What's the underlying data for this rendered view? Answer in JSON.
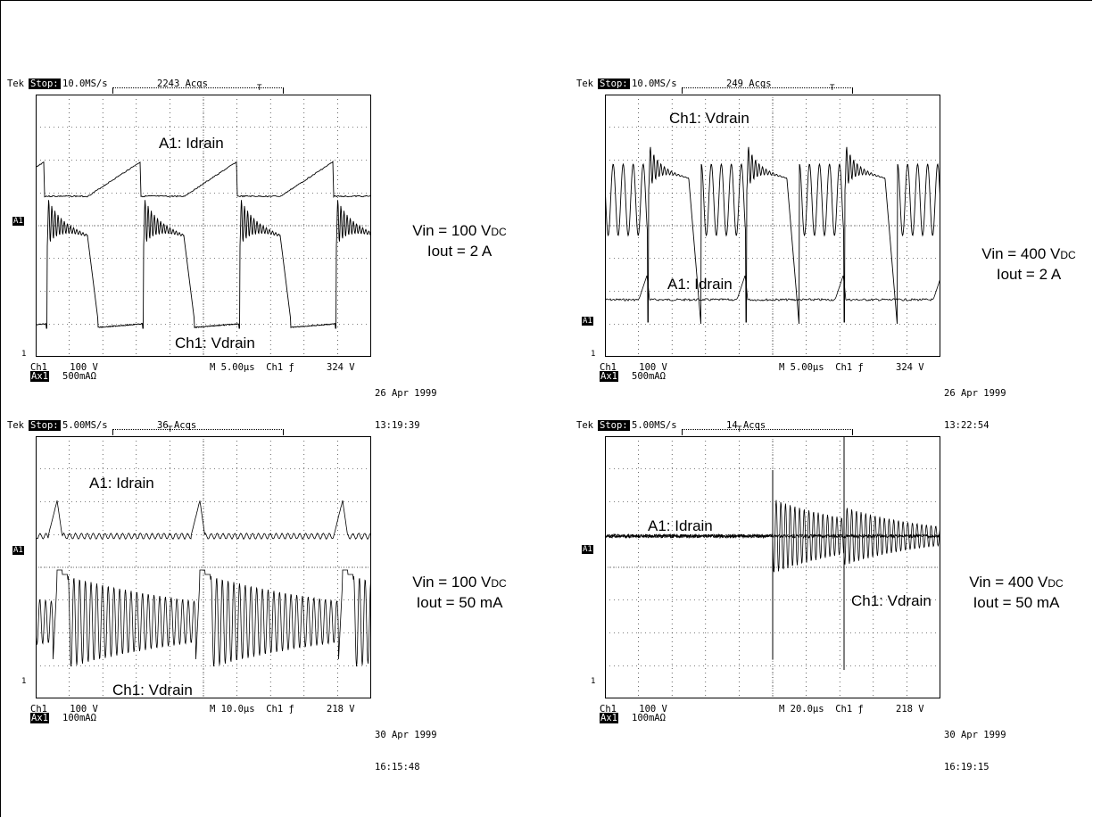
{
  "panels": [
    {
      "brand": "Tek",
      "status": "Stop:",
      "sample_rate": "10.0MS/s",
      "acqs": "2243 Acqs",
      "a1_label": "A1: Idrain",
      "ch1_label": "Ch1: Vdrain",
      "ch1_scale": "Ch1    100 V",
      "ax1_name": "Ax1",
      "ax1_scale": "500mAΩ",
      "timebase": "M 5.00µs  Ch1 ƒ",
      "trigger_level": "324 V",
      "date": "26 Apr 1999",
      "time": "13:19:39",
      "condition_vin": "Vin = 100 V",
      "vin_unit": "DC",
      "condition_iout": "Iout = 2 A"
    },
    {
      "brand": "Tek",
      "status": "Stop:",
      "sample_rate": "10.0MS/s",
      "acqs": "249 Acqs",
      "a1_label": "A1: Idrain",
      "ch1_label": "Ch1: Vdrain",
      "ch1_scale": "Ch1    100 V",
      "ax1_name": "Ax1",
      "ax1_scale": "500mAΩ",
      "timebase": "M 5.00µs  Ch1 ƒ",
      "trigger_level": "324 V",
      "date": "26 Apr 1999",
      "time": "13:22:54",
      "condition_vin": "Vin = 400 V",
      "vin_unit": "DC",
      "condition_iout": "Iout = 2 A"
    },
    {
      "brand": "Tek",
      "status": "Stop:",
      "sample_rate": "5.00MS/s",
      "acqs": "36 Acqs",
      "a1_label": "A1: Idrain",
      "ch1_label": "Ch1: Vdrain",
      "ch1_scale": "Ch1    100 V",
      "ax1_name": "Ax1",
      "ax1_scale": "100mAΩ",
      "timebase": "M 10.0µs  Ch1 ƒ",
      "trigger_level": "218 V",
      "date": "30 Apr 1999",
      "time": "16:15:48",
      "condition_vin": "Vin = 100 V",
      "vin_unit": "DC",
      "condition_iout": "Iout = 50 mA"
    },
    {
      "brand": "Tek",
      "status": "Stop:",
      "sample_rate": "5.00MS/s",
      "acqs": "14 Acqs",
      "a1_label": "A1: Idrain",
      "ch1_label": "Ch1: Vdrain",
      "ch1_scale": "Ch1    100 V",
      "ax1_name": "Ax1",
      "ax1_scale": "100mAΩ",
      "timebase": "M 20.0µs  Ch1 ƒ",
      "trigger_level": "218 V",
      "date": "30 Apr 1999",
      "time": "16:19:15",
      "condition_vin": "Vin = 400 V",
      "vin_unit": "DC",
      "condition_iout": "Iout = 50 mA"
    }
  ],
  "chart_data": [
    {
      "type": "line",
      "ch1_marker": "1",
      "a1_marker": "A1",
      "trigger_marker": "T",
      "grid": true,
      "x_divisions": 10,
      "y_divisions": 8,
      "x_per_div_us": 5.0,
      "v_per_div": 100,
      "a_per_div": 0.5,
      "series": [
        {
          "name": "A1: Idrain",
          "waveform": "ramp"
        },
        {
          "name": "Ch1: Vdrain",
          "waveform": "square with ringing"
        }
      ]
    },
    {
      "type": "line",
      "ch1_marker": "1",
      "a1_marker": "A1",
      "trigger_marker": "T",
      "grid": true,
      "x_divisions": 10,
      "y_divisions": 8,
      "x_per_div_us": 5.0,
      "v_per_div": 100,
      "a_per_div": 0.5,
      "series": [
        {
          "name": "A1: Idrain",
          "waveform": "spikes"
        },
        {
          "name": "Ch1: Vdrain",
          "waveform": "square with sinusoidal ringing"
        }
      ]
    },
    {
      "type": "line",
      "ch1_marker": "1",
      "a1_marker": "A1",
      "trigger_marker": "T",
      "grid": true,
      "x_divisions": 10,
      "y_divisions": 8,
      "x_per_div_us": 10.0,
      "v_per_div": 100,
      "a_per_div": 0.1,
      "series": [
        {
          "name": "A1: Idrain",
          "waveform": "spikes with ripple"
        },
        {
          "name": "Ch1: Vdrain",
          "waveform": "decaying oscillation"
        }
      ]
    },
    {
      "type": "line",
      "ch1_marker": "1",
      "a1_marker": "A1",
      "trigger_marker": "T",
      "grid": true,
      "x_divisions": 10,
      "y_divisions": 8,
      "x_per_div_us": 20.0,
      "v_per_div": 100,
      "a_per_div": 0.1,
      "series": [
        {
          "name": "A1: Idrain",
          "waveform": "noisy baseline"
        },
        {
          "name": "Ch1: Vdrain",
          "waveform": "burst decaying oscillation"
        }
      ]
    }
  ]
}
